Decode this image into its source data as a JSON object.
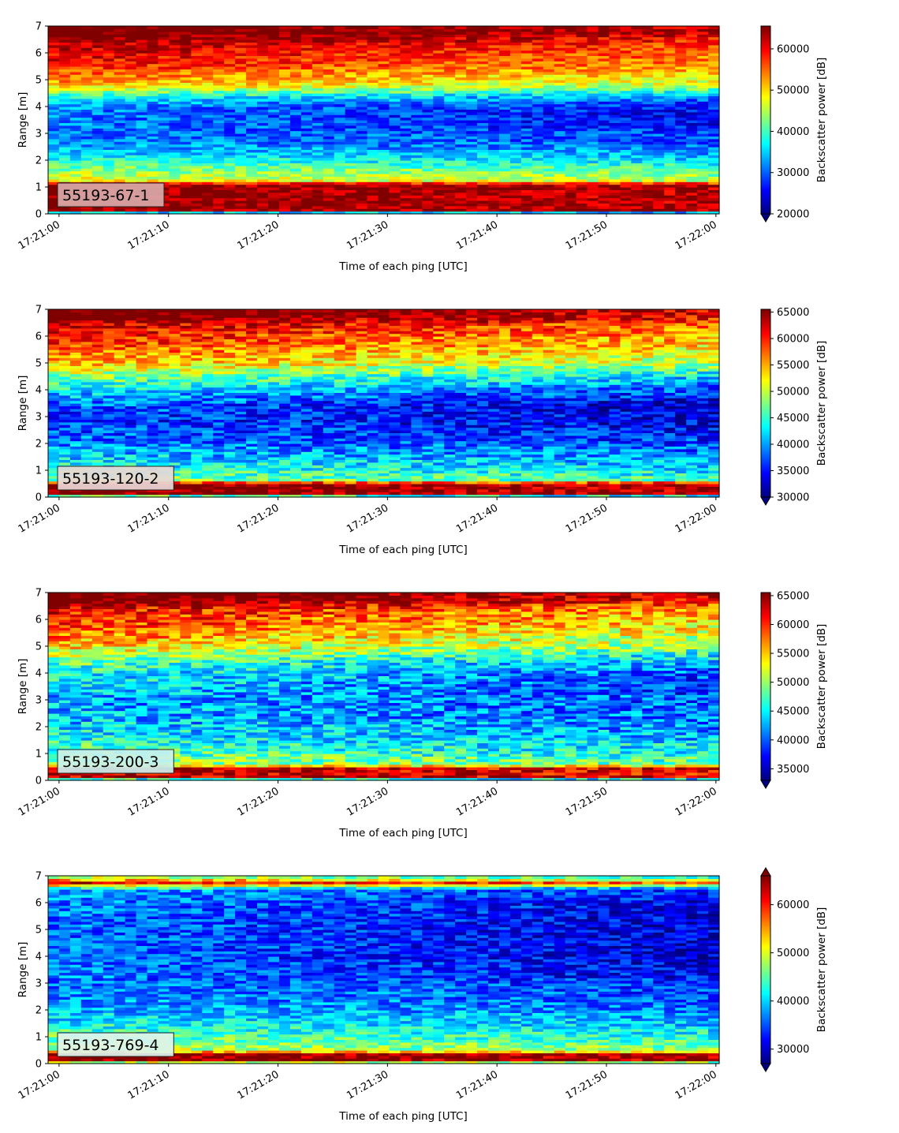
{
  "chart_data": [
    {
      "type": "heatmap",
      "id": "55193-67-1",
      "annotation": "55193-67-1",
      "annotation_bg": "#d9a9a9",
      "xlabel": "Time of each ping [UTC]",
      "ylabel": "Range [m]",
      "x_ticks": [
        "17:21:00",
        "17:21:10",
        "17:21:20",
        "17:21:30",
        "17:21:40",
        "17:21:50",
        "17:22:00"
      ],
      "y_ticks": [
        "0",
        "1",
        "2",
        "3",
        "4",
        "5",
        "6",
        "7"
      ],
      "xlim_seconds": [
        -1,
        60.3
      ],
      "ylim": [
        0,
        7
      ],
      "colorbar_label": "Backscatter power [dB]",
      "colorbar_ticks": [
        "20000",
        "30000",
        "40000",
        "50000",
        "60000"
      ],
      "colorbar_range": [
        20000,
        65535
      ],
      "colormap": "jet",
      "extend": "min",
      "profile": [
        [
          0.0,
          20000
        ],
        [
          0.15,
          64000
        ],
        [
          1.1,
          64000
        ],
        [
          1.25,
          47000
        ],
        [
          1.6,
          43000
        ],
        [
          2.0,
          37000
        ],
        [
          2.6,
          31000
        ],
        [
          3.2,
          29000
        ],
        [
          3.7,
          28000
        ],
        [
          4.1,
          30000
        ],
        [
          4.4,
          36000
        ],
        [
          4.8,
          48000
        ],
        [
          5.5,
          56000
        ],
        [
          6.3,
          60000
        ],
        [
          6.8,
          65535
        ],
        [
          7.0,
          65535
        ]
      ]
    },
    {
      "type": "heatmap",
      "id": "55193-120-2",
      "annotation": "55193-120-2",
      "annotation_bg": "#e8d7d7",
      "xlabel": "Time of each ping [UTC]",
      "ylabel": "Range [m]",
      "x_ticks": [
        "17:21:00",
        "17:21:10",
        "17:21:20",
        "17:21:30",
        "17:21:40",
        "17:21:50",
        "17:22:00"
      ],
      "y_ticks": [
        "0",
        "1",
        "2",
        "3",
        "4",
        "5",
        "6",
        "7"
      ],
      "xlim_seconds": [
        -1,
        60.3
      ],
      "ylim": [
        0,
        7
      ],
      "colorbar_label": "Backscatter power [dB]",
      "colorbar_ticks": [
        "30000",
        "35000",
        "40000",
        "45000",
        "50000",
        "55000",
        "60000",
        "65000"
      ],
      "colorbar_range": [
        30000,
        65535
      ],
      "colormap": "jet",
      "extend": "min",
      "profile": [
        [
          0.0,
          30000
        ],
        [
          0.12,
          65000
        ],
        [
          0.5,
          65000
        ],
        [
          0.65,
          47000
        ],
        [
          1.0,
          44000
        ],
        [
          1.6,
          40000
        ],
        [
          2.2,
          37000
        ],
        [
          2.8,
          35000
        ],
        [
          3.5,
          35500
        ],
        [
          4.0,
          40000
        ],
        [
          4.5,
          45000
        ],
        [
          5.0,
          52000
        ],
        [
          5.8,
          57000
        ],
        [
          6.4,
          60000
        ],
        [
          6.8,
          65535
        ],
        [
          7.0,
          65535
        ]
      ]
    },
    {
      "type": "heatmap",
      "id": "55193-200-3",
      "annotation": "55193-200-3",
      "annotation_bg": "#c8f0ee",
      "xlabel": "Time of each ping [UTC]",
      "ylabel": "Range [m]",
      "x_ticks": [
        "17:21:00",
        "17:21:10",
        "17:21:20",
        "17:21:30",
        "17:21:40",
        "17:21:50",
        "17:22:00"
      ],
      "y_ticks": [
        "0",
        "1",
        "2",
        "3",
        "4",
        "5",
        "6",
        "7"
      ],
      "xlim_seconds": [
        -1,
        60.3
      ],
      "ylim": [
        0,
        7
      ],
      "colorbar_label": "Backscatter power [dB]",
      "colorbar_ticks": [
        "35000",
        "40000",
        "45000",
        "50000",
        "55000",
        "60000",
        "65000"
      ],
      "colorbar_range": [
        33000,
        65535
      ],
      "colormap": "jet",
      "extend": "min",
      "profile": [
        [
          0.0,
          33000
        ],
        [
          0.12,
          63000
        ],
        [
          0.45,
          63000
        ],
        [
          0.6,
          50000
        ],
        [
          1.0,
          47000
        ],
        [
          1.6,
          44000
        ],
        [
          2.3,
          42000
        ],
        [
          3.0,
          41000
        ],
        [
          3.8,
          42000
        ],
        [
          4.4,
          45000
        ],
        [
          5.0,
          52000
        ],
        [
          5.8,
          57000
        ],
        [
          6.4,
          59000
        ],
        [
          6.8,
          65535
        ],
        [
          7.0,
          65535
        ]
      ]
    },
    {
      "type": "heatmap",
      "id": "55193-769-4",
      "annotation": "55193-769-4",
      "annotation_bg": "#ddf3ee",
      "xlabel": "Time of each ping [UTC]",
      "ylabel": "Range [m]",
      "x_ticks": [
        "17:21:00",
        "17:21:10",
        "17:21:20",
        "17:21:30",
        "17:21:40",
        "17:21:50",
        "17:22:00"
      ],
      "y_ticks": [
        "0",
        "1",
        "2",
        "3",
        "4",
        "5",
        "6",
        "7"
      ],
      "xlim_seconds": [
        -1,
        60.3
      ],
      "ylim": [
        0,
        7
      ],
      "colorbar_label": "Backscatter power [dB]",
      "colorbar_ticks": [
        "30000",
        "40000",
        "50000",
        "60000"
      ],
      "colorbar_range": [
        27000,
        66000
      ],
      "colormap": "jet",
      "extend": "both",
      "profile": [
        [
          0.0,
          40000
        ],
        [
          0.15,
          65000
        ],
        [
          0.35,
          65000
        ],
        [
          0.5,
          48000
        ],
        [
          1.0,
          44000
        ],
        [
          1.6,
          40000
        ],
        [
          2.2,
          37000
        ],
        [
          3.0,
          35000
        ],
        [
          4.0,
          33000
        ],
        [
          5.0,
          33000
        ],
        [
          6.0,
          34000
        ],
        [
          6.5,
          36000
        ],
        [
          6.75,
          60000
        ],
        [
          6.9,
          48000
        ],
        [
          7.0,
          45000
        ]
      ]
    }
  ]
}
